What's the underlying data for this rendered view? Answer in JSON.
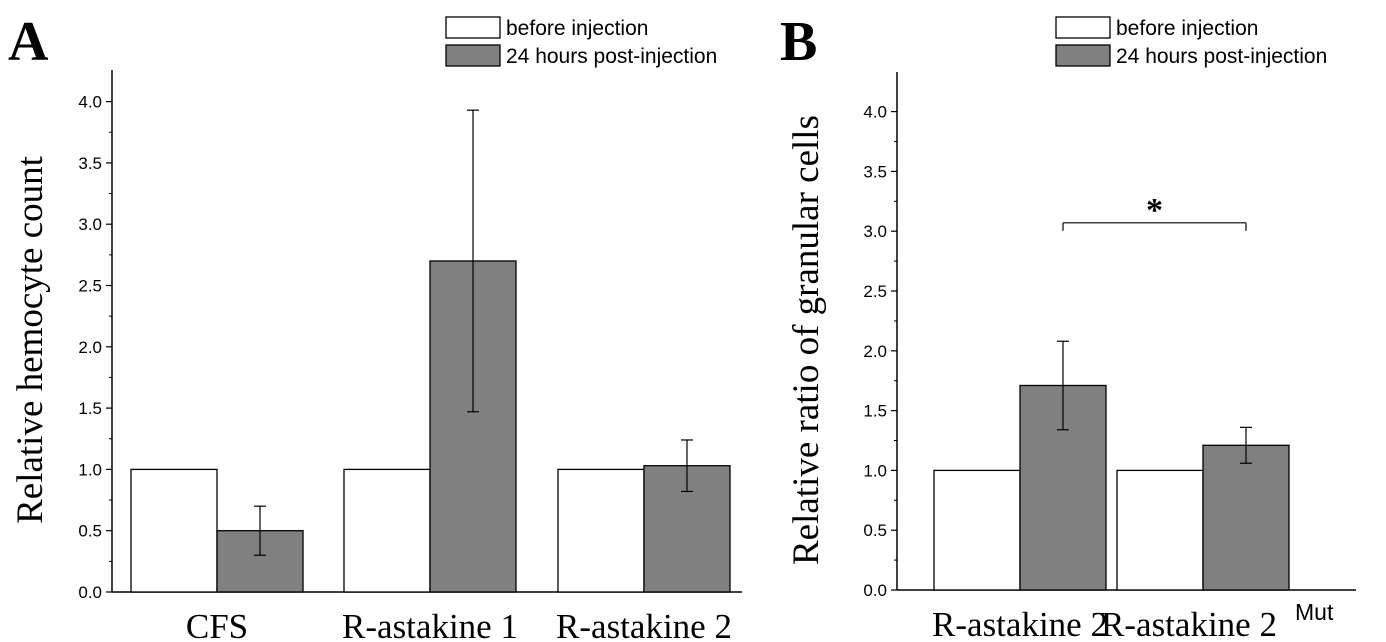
{
  "chart_data": [
    {
      "panel": "A",
      "type": "bar",
      "ylabel": "Relative hemocyte count",
      "categories": [
        "CFS",
        "R-astakine 1",
        "R-astakine 2"
      ],
      "ylim": [
        0,
        4.25
      ],
      "yticks": [
        "0.0",
        "0.5",
        "1.0",
        "1.5",
        "2.0",
        "2.5",
        "3.0",
        "3.5",
        "4.0"
      ],
      "legend": {
        "position": "top-right"
      },
      "series": [
        {
          "name": "before injection",
          "color": "#ffffff",
          "values": [
            1.0,
            1.0,
            1.0
          ],
          "errors": [
            0,
            0,
            0
          ]
        },
        {
          "name": "24 hours post-injection",
          "color": "#808080",
          "values": [
            0.5,
            2.7,
            1.03
          ],
          "errors": [
            0.2,
            1.23,
            0.21
          ]
        }
      ]
    },
    {
      "panel": "B",
      "type": "bar",
      "ylabel": "Relative ratio of granular cells",
      "categories": [
        "R-astakine 2",
        "R-astakine 2"
      ],
      "category_superscripts": [
        "",
        "Mut"
      ],
      "ylim": [
        0,
        4.25
      ],
      "yticks": [
        "0.0",
        "0.5",
        "1.0",
        "1.5",
        "2.0",
        "2.5",
        "3.0",
        "3.5",
        "4.0"
      ],
      "legend": {
        "position": "top-right"
      },
      "significance": {
        "label": "*",
        "between": [
          0,
          1
        ],
        "y": 3.07
      },
      "series": [
        {
          "name": "before injection",
          "color": "#ffffff",
          "values": [
            1.0,
            1.0
          ],
          "errors": [
            0,
            0
          ]
        },
        {
          "name": "24 hours post-injection",
          "color": "#808080",
          "values": [
            1.71,
            1.21
          ],
          "errors": [
            0.37,
            0.15
          ]
        }
      ]
    }
  ]
}
